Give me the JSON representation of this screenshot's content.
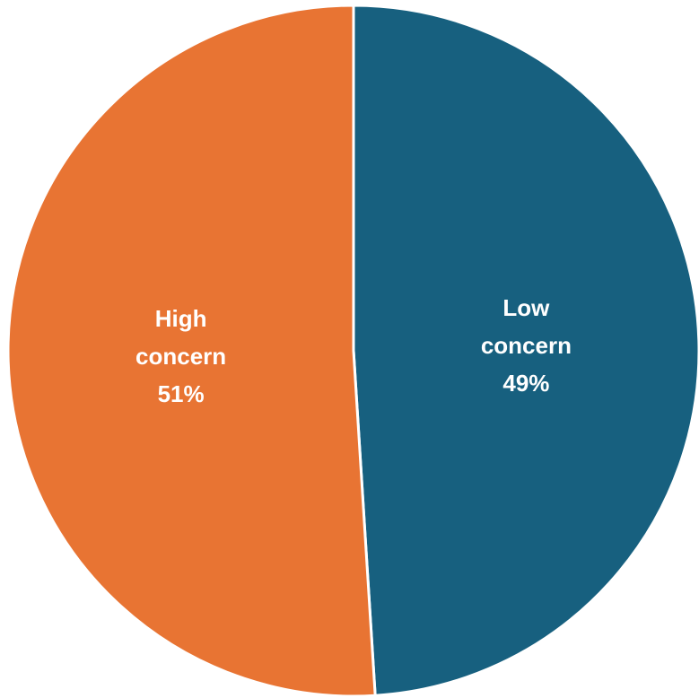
{
  "chart_data": {
    "type": "pie",
    "title": "",
    "legend": "none",
    "slices": [
      {
        "label_lines": [
          "Low",
          "concern"
        ],
        "value": 49,
        "value_label": "49%",
        "color": "#17607f"
      },
      {
        "label_lines": [
          "High",
          "concern"
        ],
        "value": 51,
        "value_label": "51%",
        "color": "#e87433"
      }
    ],
    "start_angle_deg": 0,
    "direction": "clockwise",
    "border_color": "#ffffff"
  }
}
